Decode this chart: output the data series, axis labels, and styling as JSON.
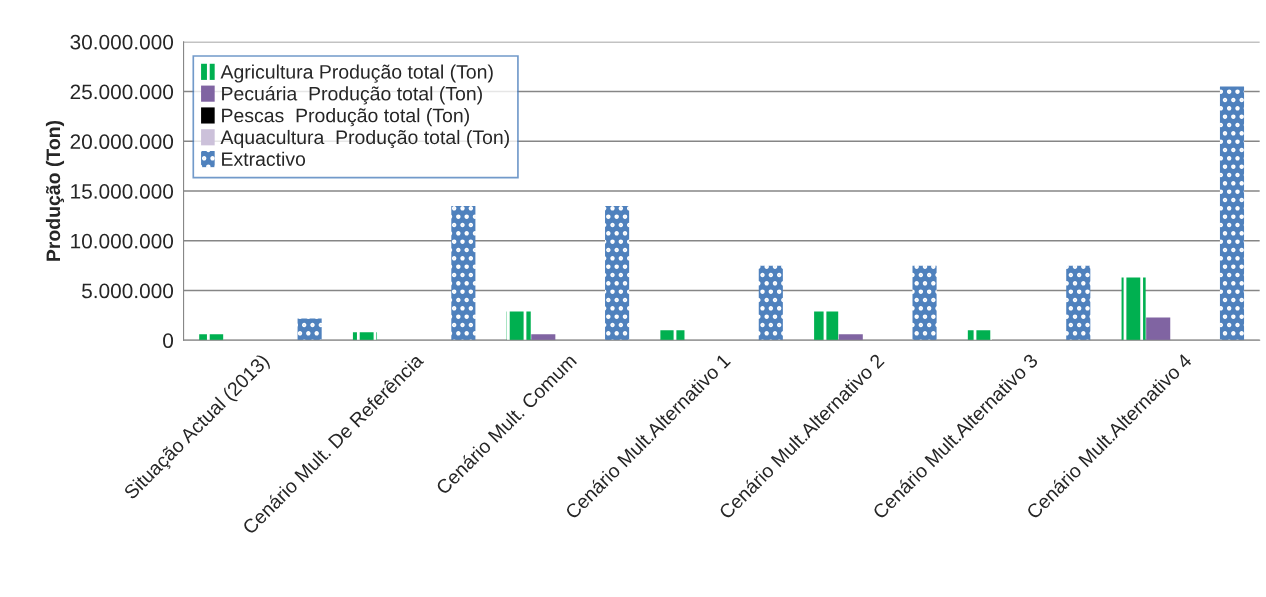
{
  "chart_data": {
    "type": "bar",
    "ylabel": "Produção (Ton)",
    "categories": [
      "Situação Actual (2013)",
      "Cenário Mult. De Referência",
      "Cenário Mult. Comum",
      "Cenário Mult.Alternativo 1",
      "Cenário Mult.Alternativo 2",
      "Cenário Mult.Alternativo 3",
      "Cenário Mult.Alternativo 4"
    ],
    "series": [
      {
        "name": "Agricultura Produção total (Ton)",
        "color": "#00b050",
        "values": [
          600000,
          800000,
          2900000,
          1000000,
          2900000,
          1000000,
          6300000
        ]
      },
      {
        "name": "Pecuária  Produção total (Ton)",
        "color": "#8064a2",
        "values": [
          0,
          0,
          600000,
          null,
          600000,
          null,
          2300000
        ]
      },
      {
        "name": "Pescas  Produção total (Ton)",
        "color": "#000000",
        "values": [
          0,
          0,
          0,
          0,
          0,
          0,
          0
        ]
      },
      {
        "name": "Aquacultura  Produção total (Ton)",
        "color": "#ccc1da",
        "values": [
          0,
          0,
          0,
          0,
          0,
          0,
          0
        ]
      },
      {
        "name": "Extractivo",
        "color": "#4f81bd",
        "values": [
          2200000,
          13500000,
          13500000,
          7500000,
          7500000,
          7500000,
          25500000
        ]
      }
    ],
    "ylim": [
      0,
      30000000
    ],
    "yticks": [
      {
        "value": 0,
        "label": "0"
      },
      {
        "value": 5000000,
        "label": "5.000.000"
      },
      {
        "value": 10000000,
        "label": "10.000.000"
      },
      {
        "value": 15000000,
        "label": "15.000.000"
      },
      {
        "value": 20000000,
        "label": "20.000.000"
      },
      {
        "value": 25000000,
        "label": "25.000.000"
      },
      {
        "value": 30000000,
        "label": "30.000.000"
      }
    ],
    "grid": "y",
    "legend": "top left"
  }
}
